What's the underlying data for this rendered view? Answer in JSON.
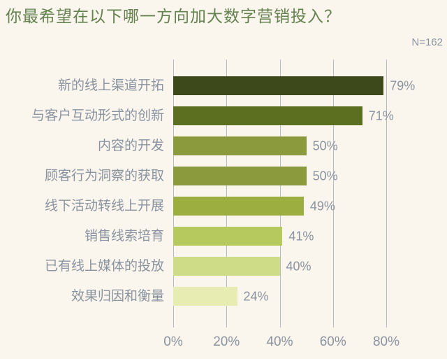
{
  "colors": {
    "background": "#faf5ed",
    "title_text": "#63824f",
    "label_text": "#8a93a0",
    "gridline": "#b7bac2"
  },
  "chart_data": {
    "type": "bar",
    "orientation": "horizontal",
    "title": "你最希望在以下哪一方向加大数字营销投入？",
    "sample_size": "N=162",
    "categories": [
      "新的线上渠道开拓",
      "与客户互动形式的创新",
      "内容的开发",
      "顾客行为洞察的获取",
      "线下活动转线上开展",
      "销售线索培育",
      "已有线上媒体的投放",
      "效果归因和衡量"
    ],
    "values": [
      79,
      71,
      50,
      50,
      49,
      41,
      40,
      24
    ],
    "value_labels": [
      "79%",
      "71%",
      "50%",
      "50%",
      "49%",
      "41%",
      "40%",
      "24%"
    ],
    "x_ticks": [
      0,
      20,
      40,
      60,
      80
    ],
    "x_tick_labels": [
      "0%",
      "20%",
      "40%",
      "60%",
      "80%"
    ],
    "xlim": [
      0,
      102
    ],
    "grid": true,
    "legend": false,
    "bar_colors": [
      "#3d481b",
      "#5c6e20",
      "#8a9a3c",
      "#8a9a3c",
      "#9cae3f",
      "#b5c95e",
      "#cfdc87",
      "#e6ecb2"
    ]
  }
}
